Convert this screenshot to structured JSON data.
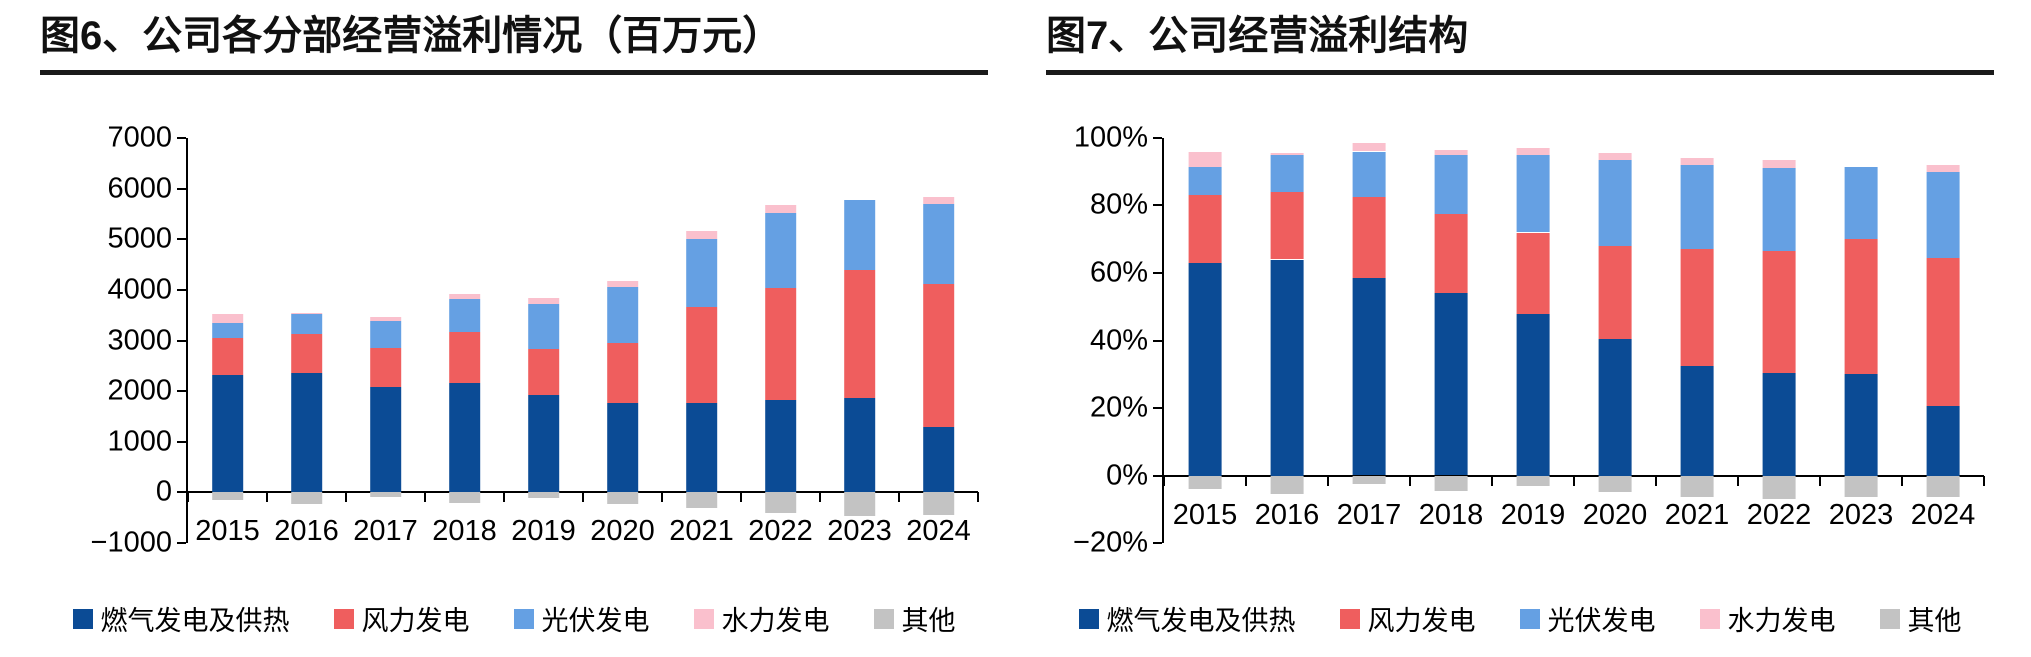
{
  "figure6": {
    "title": "图6、公司各分部经营溢利情况（百万元）"
  },
  "figure7": {
    "title": "图7、公司经营溢利结构"
  },
  "colors": {
    "gas": "#0B4B95",
    "wind": "#EF5E5E",
    "solar": "#65A0E3",
    "hydro": "#FAC0CD",
    "other": "#C3C3C3"
  },
  "chart_data": [
    {
      "type": "bar",
      "stacked": true,
      "title": "图6、公司各分部经营溢利情况（百万元）",
      "xlabel": "",
      "ylabel": "",
      "ylim": [
        -1000,
        7000
      ],
      "grid": false,
      "legend_position": "bottom",
      "categories": [
        "2015",
        "2016",
        "2017",
        "2018",
        "2019",
        "2020",
        "2021",
        "2022",
        "2023",
        "2024"
      ],
      "ytick_values": [
        7000,
        6000,
        5000,
        4000,
        3000,
        2000,
        1000,
        0,
        -1000
      ],
      "ytick_labels": [
        "7000",
        "6000",
        "5000",
        "4000",
        "3000",
        "2000",
        "1000",
        "0",
        "−1000"
      ],
      "series": [
        {
          "name": "燃气发电及供热",
          "color": "#0B4B95",
          "values": [
            2320,
            2360,
            2080,
            2160,
            1920,
            1770,
            1770,
            1830,
            1870,
            1290
          ]
        },
        {
          "name": "风力发电",
          "color": "#EF5E5E",
          "values": [
            720,
            760,
            780,
            1010,
            920,
            1180,
            1900,
            2200,
            2530,
            2820
          ]
        },
        {
          "name": "光伏发电",
          "color": "#65A0E3",
          "values": [
            310,
            400,
            520,
            640,
            890,
            1100,
            1340,
            1480,
            1370,
            1580
          ]
        },
        {
          "name": "水力发电",
          "color": "#FAC0CD",
          "values": [
            180,
            30,
            80,
            100,
            100,
            130,
            150,
            160,
            0,
            140
          ]
        },
        {
          "name": "其他",
          "color": "#C3C3C3",
          "values": [
            -160,
            -220,
            -90,
            -200,
            -120,
            -230,
            -310,
            -410,
            -470,
            -450
          ]
        }
      ]
    },
    {
      "type": "bar",
      "stacked": true,
      "title": "图7、公司经营溢利结构",
      "xlabel": "",
      "ylabel": "",
      "ylim": [
        -20,
        100
      ],
      "grid": false,
      "legend_position": "bottom",
      "categories": [
        "2015",
        "2016",
        "2017",
        "2018",
        "2019",
        "2020",
        "2021",
        "2022",
        "2023",
        "2024"
      ],
      "ytick_values": [
        100,
        80,
        60,
        40,
        20,
        0,
        -20
      ],
      "ytick_labels": [
        "100%",
        "80%",
        "60%",
        "40%",
        "20%",
        "0%",
        "−20%"
      ],
      "series": [
        {
          "name": "燃气发电及供热",
          "color": "#0B4B95",
          "values": [
            63,
            64,
            58.5,
            54,
            48,
            40.5,
            32.5,
            30.5,
            30,
            20.5
          ]
        },
        {
          "name": "风力发电",
          "color": "#EF5E5E",
          "values": [
            20,
            20,
            24,
            23.5,
            24,
            27.5,
            34.5,
            36,
            40,
            44
          ]
        },
        {
          "name": "光伏发电",
          "color": "#65A0E3",
          "values": [
            8.5,
            11,
            13.5,
            17.5,
            23,
            25.5,
            25,
            24.5,
            21.5,
            25.5
          ]
        },
        {
          "name": "水力发电",
          "color": "#FAC0CD",
          "values": [
            4.5,
            0.5,
            2.5,
            1.5,
            2,
            2,
            2,
            2.5,
            0,
            2
          ]
        },
        {
          "name": "其他",
          "color": "#C3C3C3",
          "values": [
            -4,
            -5.5,
            -2.5,
            -4.5,
            -3,
            -5,
            -6.5,
            -7,
            -6.5,
            -6.5
          ]
        }
      ]
    }
  ]
}
